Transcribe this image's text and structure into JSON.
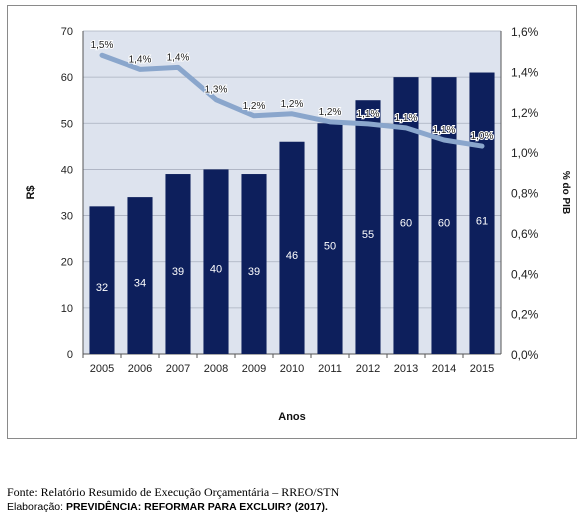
{
  "chart_data": {
    "type": "bar",
    "categories": [
      "2005",
      "2006",
      "2007",
      "2008",
      "2009",
      "2010",
      "2011",
      "2012",
      "2013",
      "2014",
      "2015"
    ],
    "series": [
      {
        "name": "R$",
        "type": "bar",
        "axis": "left",
        "values": [
          32,
          34,
          39,
          40,
          39,
          46,
          50,
          55,
          60,
          60,
          61
        ],
        "labels": [
          "32",
          "34",
          "39",
          "40",
          "39",
          "46",
          "50",
          "55",
          "60",
          "60",
          "61"
        ],
        "color": "#0d1f5c"
      },
      {
        "name": "% do PIB",
        "type": "line",
        "axis": "right",
        "values": [
          1.5,
          1.4,
          1.4,
          1.3,
          1.2,
          1.2,
          1.2,
          1.1,
          1.1,
          1.1,
          1.0
        ],
        "plotted": [
          1.48,
          1.41,
          1.42,
          1.26,
          1.18,
          1.19,
          1.15,
          1.14,
          1.12,
          1.06,
          1.03
        ],
        "labels": [
          "1,5%",
          "1,4%",
          "1,4%",
          "1,3%",
          "1,2%",
          "1,2%",
          "1,2%",
          "1,1%",
          "1,1%",
          "1,1%",
          "1,0%"
        ],
        "color": "#8aa6cc"
      }
    ],
    "xlabel": "Anos",
    "ylabel": "R$",
    "y2label": "% do PIB",
    "ylim": [
      0,
      70
    ],
    "yticks": [
      "0",
      "10",
      "20",
      "30",
      "40",
      "50",
      "60",
      "70"
    ],
    "y2lim": [
      0,
      1.6
    ],
    "y2ticks": [
      "0,0%",
      "0,2%",
      "0,4%",
      "0,6%",
      "0,8%",
      "1,0%",
      "1,2%",
      "1,4%",
      "1,6%"
    ],
    "plot_background": "#dde3ee",
    "grid": true,
    "legend": "none"
  },
  "captions": {
    "source": "Fonte: Relatório Resumido de Execução Orçamentária – RREO/STN",
    "credit_prefix": "Elaboração: ",
    "credit_bold": "PREVIDÊNCIA: REFORMAR PARA EXCLUIR? (2017)."
  }
}
